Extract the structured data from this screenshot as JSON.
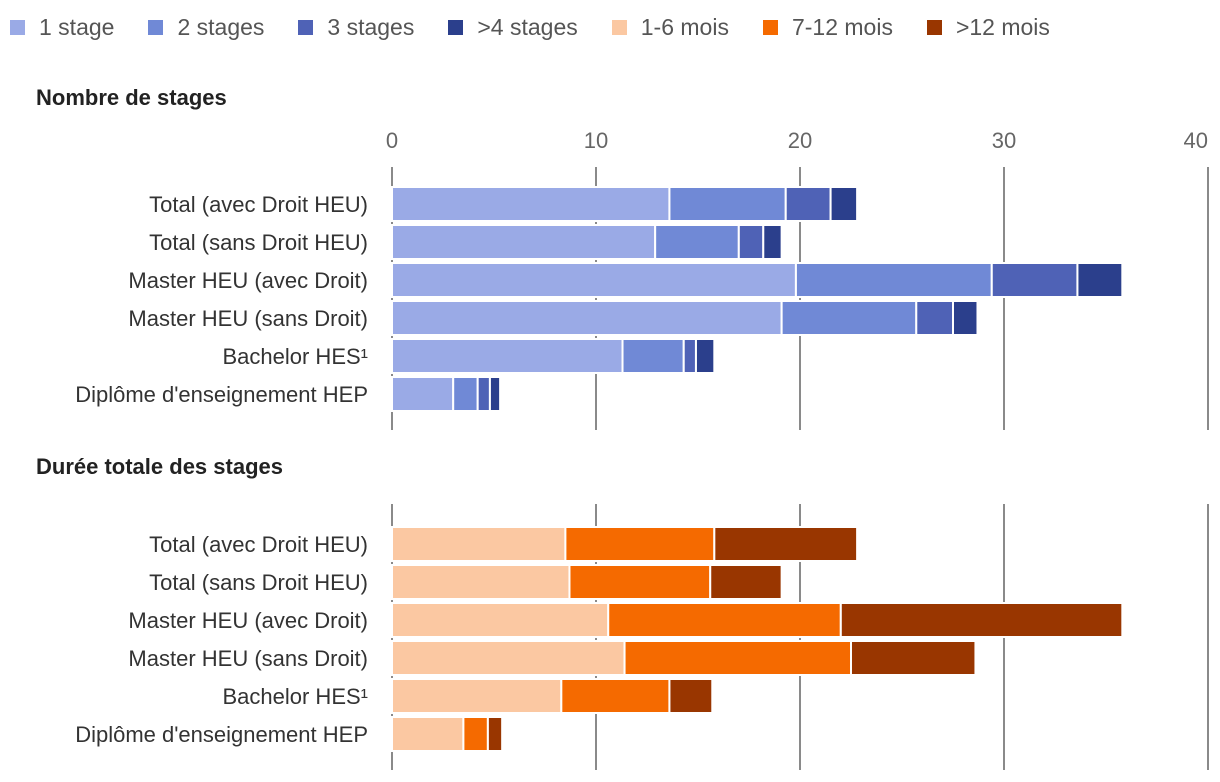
{
  "legend": {
    "items": [
      {
        "label": "1 stage",
        "color": "#9aaae6"
      },
      {
        "label": "2 stages",
        "color": "#7089d6"
      },
      {
        "label": "3 stages",
        "color": "#4f62b6"
      },
      {
        "label": ">4 stages",
        "color": "#2b3f8c"
      },
      {
        "label": "1-6 mois",
        "color": "#fbc8a2"
      },
      {
        "label": "7-12 mois",
        "color": "#f56a00"
      },
      {
        "label": ">12 mois",
        "color": "#993600"
      }
    ]
  },
  "chart_data": [
    {
      "type": "bar",
      "orientation": "horizontal",
      "stacked": true,
      "title": "Nombre de stages",
      "categories": [
        "Total (avec Droit HEU)",
        "Total (sans Droit HEU)",
        "Master HEU (avec Droit)",
        "Master HEU (sans Droit)",
        "Bachelor HES¹",
        "Diplôme d'enseignement HEP"
      ],
      "xlim": [
        0,
        40
      ],
      "xticks": [
        0,
        10,
        20,
        30,
        40
      ],
      "grid": true,
      "series": [
        {
          "name": "1 stage",
          "color": "#9aaae6",
          "values": [
            13.6,
            12.9,
            19.8,
            19.1,
            11.3,
            3.0
          ]
        },
        {
          "name": "2 stages",
          "color": "#7089d6",
          "values": [
            5.7,
            4.1,
            9.6,
            6.6,
            3.0,
            1.2
          ]
        },
        {
          "name": "3 stages",
          "color": "#4f62b6",
          "values": [
            2.2,
            1.2,
            4.2,
            1.8,
            0.6,
            0.6
          ]
        },
        {
          "name": ">4 stages",
          "color": "#2b3f8c",
          "values": [
            1.3,
            0.9,
            2.2,
            1.2,
            0.9,
            0.5
          ]
        }
      ]
    },
    {
      "type": "bar",
      "orientation": "horizontal",
      "stacked": true,
      "title": "Durée totale des stages",
      "categories": [
        "Total (avec Droit HEU)",
        "Total (sans Droit HEU)",
        "Master HEU (avec Droit)",
        "Master HEU (sans Droit)",
        "Bachelor HES¹",
        "Diplôme d'enseignement HEP"
      ],
      "xlim": [
        0,
        40
      ],
      "grid": true,
      "series": [
        {
          "name": "1-6 mois",
          "color": "#fbc8a2",
          "values": [
            8.5,
            8.7,
            10.6,
            11.4,
            8.3,
            3.5
          ]
        },
        {
          "name": "7-12 mois",
          "color": "#f56a00",
          "values": [
            7.3,
            6.9,
            11.4,
            11.1,
            5.3,
            1.2
          ]
        },
        {
          "name": ">12 mois",
          "color": "#993600",
          "values": [
            7.0,
            3.5,
            13.8,
            6.1,
            2.1,
            0.7
          ]
        }
      ]
    }
  ]
}
